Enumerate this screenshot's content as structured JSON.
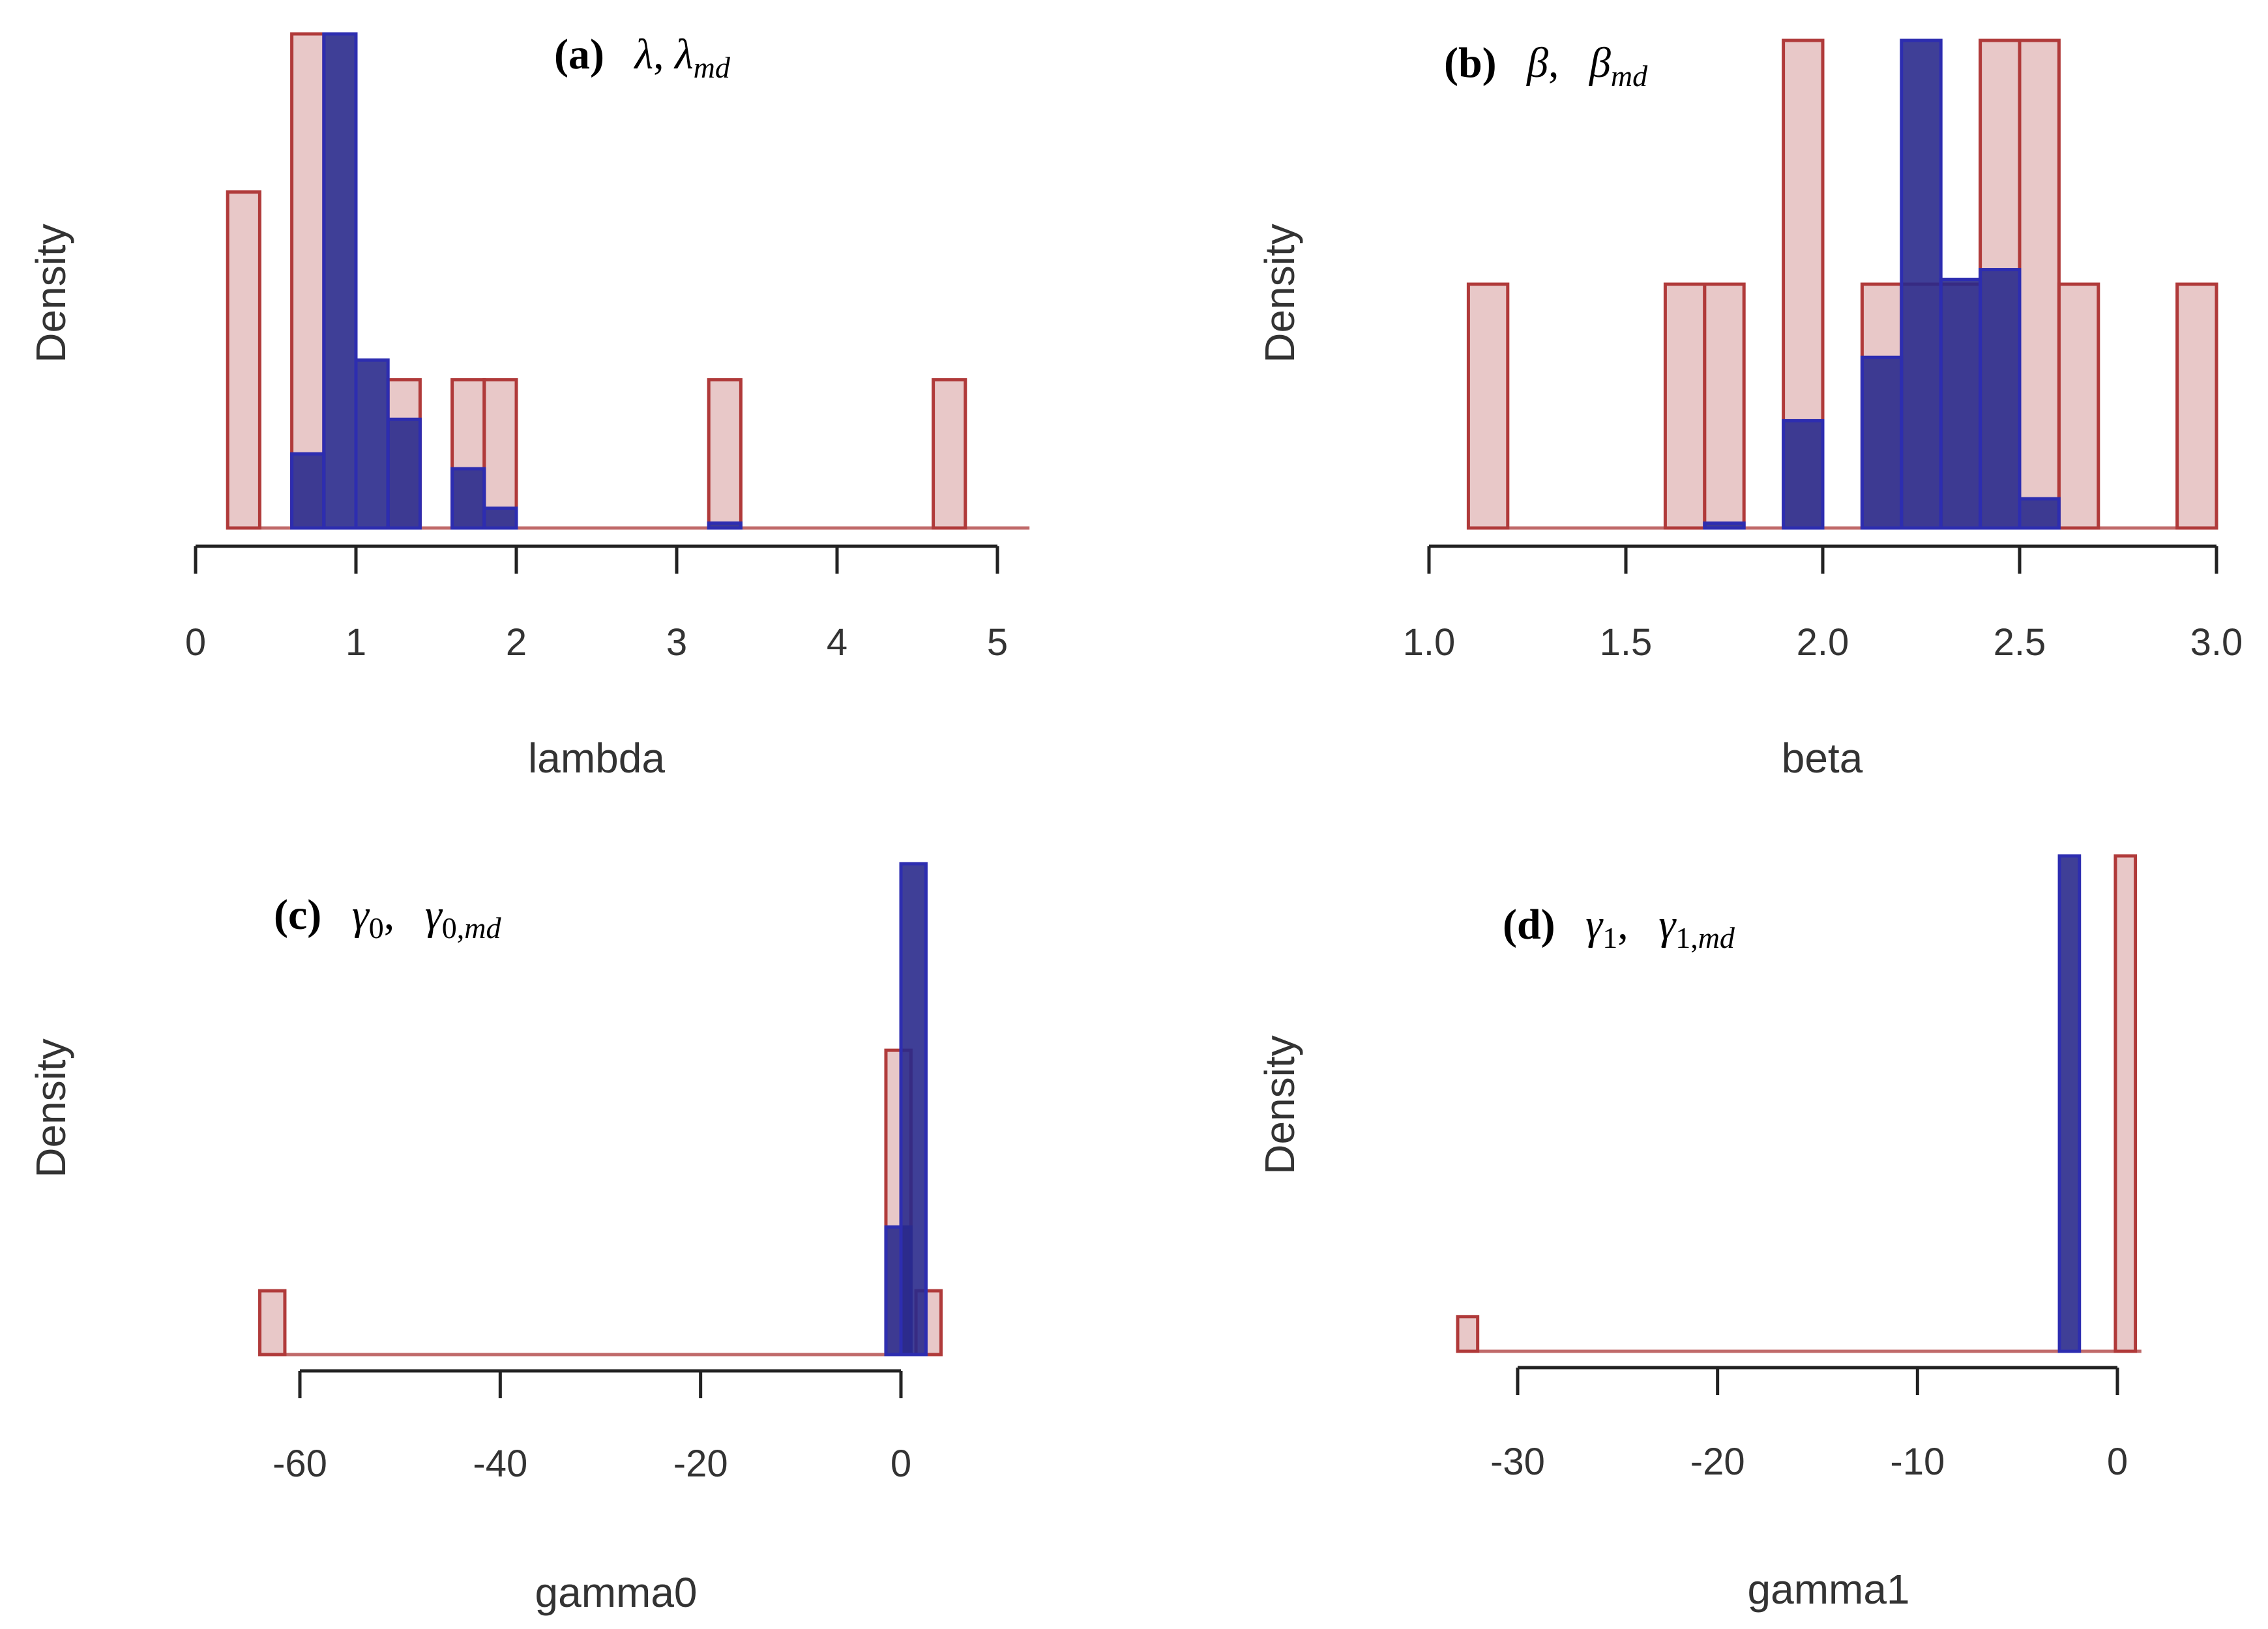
{
  "colors": {
    "prior": "#d9a3a3",
    "prior_edge": "#b03a3a",
    "posterior": "#2a2a8c",
    "posterior_edge": "#2d2db0"
  },
  "chart_data": [
    {
      "type": "bar",
      "panel": "(a)",
      "title_symbols": "λ, λ_md",
      "xlabel": "lambda",
      "ylabel": "Density",
      "xlim": [
        0,
        5.2
      ],
      "ylim": [
        0,
        1.0
      ],
      "xticks": [
        0,
        1,
        2,
        3,
        4,
        5
      ],
      "tick_labels": [
        "0",
        "1",
        "2",
        "3",
        "4",
        "5"
      ],
      "bin_width": 0.2,
      "series": [
        {
          "bin_starts": [
            0.2,
            0.6,
            1.2,
            1.6,
            1.8,
            3.2,
            4.6
          ],
          "values": [
            0.68,
            1.0,
            0.3,
            0.3,
            0.3,
            0.3,
            0.3
          ]
        },
        {
          "bin_starts": [
            0.6,
            0.8,
            1.0,
            1.2,
            1.6,
            1.8,
            3.2
          ],
          "values": [
            0.15,
            1.0,
            0.34,
            0.22,
            0.12,
            0.04,
            0.01
          ]
        }
      ]
    },
    {
      "type": "bar",
      "panel": "(b)",
      "title_symbols": "β, β_md",
      "xlabel": "beta",
      "ylabel": "Density",
      "xlim": [
        1.0,
        3.0
      ],
      "ylim": [
        0,
        1.0
      ],
      "xticks": [
        1.0,
        1.5,
        2.0,
        2.5,
        3.0
      ],
      "tick_labels": [
        "1.0",
        "1.5",
        "2.0",
        "2.5",
        "3.0"
      ],
      "bin_width": 0.1,
      "series": [
        {
          "bin_starts": [
            1.1,
            1.6,
            1.7,
            1.9,
            2.1,
            2.2,
            2.3,
            2.4,
            2.5,
            2.6,
            2.9
          ],
          "values": [
            0.5,
            0.5,
            0.5,
            1.0,
            0.5,
            0.5,
            0.5,
            1.0,
            1.0,
            0.5,
            0.5
          ]
        },
        {
          "bin_starts": [
            1.7,
            1.9,
            2.1,
            2.2,
            2.3,
            2.4,
            2.5
          ],
          "values": [
            0.01,
            0.22,
            0.35,
            1.0,
            0.51,
            0.53,
            0.06
          ]
        }
      ]
    },
    {
      "type": "bar",
      "panel": "(c)",
      "title_symbols": "γ0, γ0,md",
      "xlabel": "gamma0",
      "ylabel": "Density",
      "xlim": [
        -65,
        5
      ],
      "ylim": [
        0,
        1.0
      ],
      "xticks": [
        -60,
        -40,
        -20,
        0
      ],
      "tick_labels": [
        "-60",
        "-40",
        "-20",
        "0"
      ],
      "bin_width": 2.5,
      "series": [
        {
          "bin_starts": [
            -64,
            -1.5,
            1.5
          ],
          "values": [
            0.13,
            0.62,
            0.13
          ]
        },
        {
          "bin_starts": [
            -1.5,
            0
          ],
          "values": [
            0.26,
            1.0
          ]
        }
      ]
    },
    {
      "type": "bar",
      "panel": "(d)",
      "title_symbols": "γ1, γ1,md",
      "xlabel": "gamma1",
      "ylabel": "Density",
      "xlim": [
        -33,
        1.2
      ],
      "ylim": [
        0,
        1.0
      ],
      "xticks": [
        -30,
        -20,
        -10,
        0
      ],
      "tick_labels": [
        "-30",
        "-20",
        "-10",
        "0"
      ],
      "bin_width": 1.0,
      "series": [
        {
          "bin_starts": [
            -33,
            -0.1
          ],
          "values": [
            0.07,
            1.0
          ]
        },
        {
          "bin_starts": [
            -2.9
          ],
          "values": [
            1.0
          ]
        }
      ]
    }
  ]
}
